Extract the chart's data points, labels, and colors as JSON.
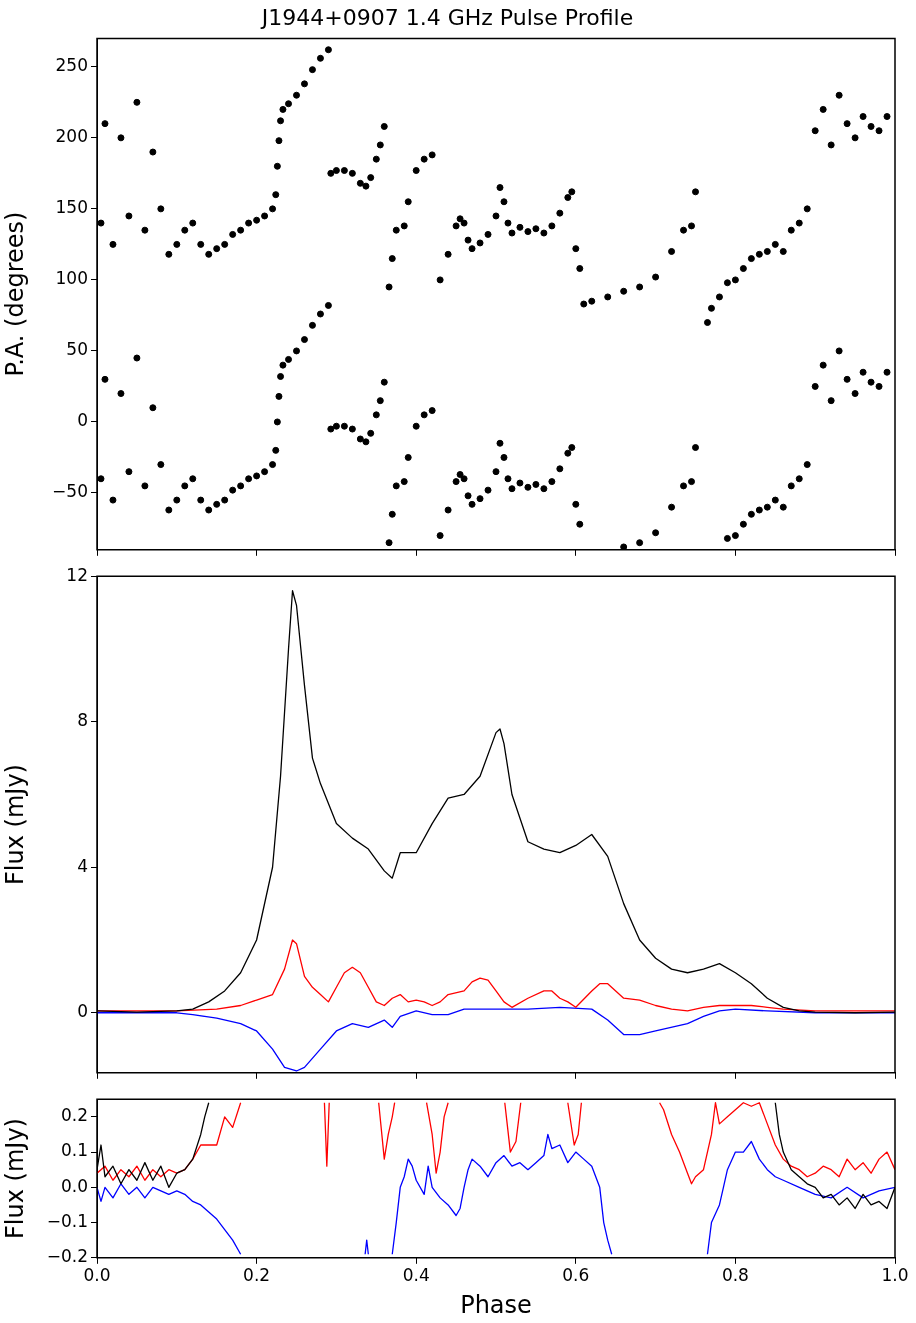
{
  "chart_data": [
    {
      "type": "scatter",
      "title": "J1944+0907 1.4 GHz Pulse Profile",
      "ylabel": "P.A. (degrees)",
      "xlim": [
        0,
        1
      ],
      "xticks": [
        0,
        0.2,
        0.4,
        0.6,
        0.8,
        1
      ],
      "ylim": [
        -90,
        270
      ],
      "yticks": [
        {
          "value": -50,
          "label": "−50"
        },
        0,
        50,
        100,
        150,
        200,
        250
      ],
      "tick_labels": "y",
      "marker": "circle",
      "grid": false,
      "series": [
        {
          "color": "#000000",
          "x": [
            0.005,
            0.01,
            0.02,
            0.03,
            0.04,
            0.05,
            0.06,
            0.07,
            0.08,
            0.09,
            0.1,
            0.11,
            0.12,
            0.13,
            0.14,
            0.15,
            0.16,
            0.17,
            0.18,
            0.19,
            0.2,
            0.21,
            0.22,
            0.224,
            0.226,
            0.228,
            0.23,
            0.233,
            0.24,
            0.25,
            0.26,
            0.27,
            0.28,
            0.29,
            0.293,
            0.3,
            0.31,
            0.32,
            0.33,
            0.337,
            0.343,
            0.35,
            0.355,
            0.36,
            0.366,
            0.37,
            0.375,
            0.385,
            0.39,
            0.4,
            0.41,
            0.42,
            0.43,
            0.44,
            0.45,
            0.455,
            0.46,
            0.465,
            0.47,
            0.48,
            0.49,
            0.5,
            0.505,
            0.51,
            0.515,
            0.52,
            0.53,
            0.54,
            0.55,
            0.56,
            0.57,
            0.58,
            0.59,
            0.595,
            0.6,
            0.605,
            0.66,
            0.68,
            0.7,
            0.72,
            0.735,
            0.745,
            0.75,
            0.79,
            0.8,
            0.81,
            0.82,
            0.83,
            0.84,
            0.85,
            0.86,
            0.87,
            0.88,
            0.89,
            0.9,
            0.91,
            0.92,
            0.93,
            0.94,
            0.95,
            0.96,
            0.97,
            0.98,
            0.99
          ],
          "values": [
            -40,
            30,
            -55,
            20,
            -35,
            45,
            -45,
            10,
            -30,
            -62,
            -55,
            -45,
            -40,
            -55,
            -62,
            -58,
            -55,
            -48,
            -45,
            -40,
            -38,
            -35,
            -30,
            -20,
            0,
            18,
            32,
            40,
            44,
            50,
            58,
            68,
            76,
            82,
            -5,
            -3,
            -3,
            -5,
            -12,
            -14,
            -8,
            5,
            15,
            28,
            -85,
            -65,
            -45,
            -42,
            -25,
            -3,
            5,
            8,
            -80,
            -62,
            -42,
            -37,
            -40,
            -52,
            -58,
            -54,
            -48,
            -35,
            -15,
            -25,
            -40,
            -47,
            -43,
            -46,
            -44,
            -47,
            -42,
            -33,
            -22,
            -18,
            -58,
            -72,
            -88,
            -85,
            -78,
            -60,
            -45,
            -42,
            -18,
            -82,
            -80,
            -72,
            -65,
            -62,
            -60,
            -55,
            -60,
            -45,
            -40,
            -30,
            25,
            40,
            15,
            50,
            30,
            20,
            35,
            28,
            25,
            35
          ]
        },
        {
          "color": "#000000",
          "x": [
            0.005,
            0.01,
            0.02,
            0.03,
            0.04,
            0.05,
            0.06,
            0.07,
            0.08,
            0.09,
            0.1,
            0.11,
            0.12,
            0.13,
            0.14,
            0.15,
            0.16,
            0.17,
            0.18,
            0.19,
            0.2,
            0.21,
            0.22,
            0.224,
            0.226,
            0.228,
            0.23,
            0.233,
            0.24,
            0.25,
            0.26,
            0.27,
            0.28,
            0.29,
            0.293,
            0.3,
            0.31,
            0.32,
            0.33,
            0.337,
            0.343,
            0.35,
            0.355,
            0.36,
            0.366,
            0.37,
            0.375,
            0.385,
            0.39,
            0.4,
            0.41,
            0.42,
            0.43,
            0.44,
            0.45,
            0.455,
            0.46,
            0.465,
            0.47,
            0.48,
            0.49,
            0.5,
            0.505,
            0.51,
            0.515,
            0.52,
            0.53,
            0.54,
            0.55,
            0.56,
            0.57,
            0.58,
            0.59,
            0.595,
            0.6,
            0.605,
            0.61,
            0.62,
            0.64,
            0.66,
            0.68,
            0.7,
            0.72,
            0.735,
            0.745,
            0.75,
            0.765,
            0.77,
            0.78,
            0.79,
            0.8,
            0.81,
            0.82,
            0.83,
            0.84,
            0.85,
            0.86,
            0.87,
            0.88,
            0.89,
            0.9,
            0.91,
            0.92,
            0.93,
            0.94,
            0.95,
            0.96,
            0.97,
            0.98,
            0.99
          ],
          "values": [
            140,
            210,
            125,
            200,
            145,
            225,
            135,
            190,
            150,
            118,
            125,
            135,
            140,
            125,
            118,
            122,
            125,
            132,
            135,
            140,
            142,
            145,
            150,
            160,
            180,
            198,
            212,
            220,
            224,
            230,
            238,
            248,
            256,
            262,
            175,
            177,
            177,
            175,
            168,
            166,
            172,
            185,
            195,
            208,
            95,
            115,
            135,
            138,
            155,
            177,
            185,
            188,
            100,
            118,
            138,
            143,
            140,
            128,
            122,
            126,
            132,
            145,
            165,
            155,
            140,
            133,
            137,
            134,
            136,
            133,
            138,
            147,
            158,
            162,
            122,
            108,
            83,
            85,
            88,
            92,
            95,
            102,
            120,
            135,
            138,
            162,
            70,
            80,
            88,
            98,
            100,
            108,
            115,
            118,
            120,
            125,
            120,
            135,
            140,
            150,
            205,
            220,
            195,
            230,
            210,
            200,
            215,
            208,
            205,
            215
          ]
        }
      ]
    },
    {
      "type": "line",
      "ylabel": "Flux (mJy)",
      "xlim": [
        0,
        1
      ],
      "xticks": [
        0,
        0.2,
        0.4,
        0.6,
        0.8,
        1
      ],
      "ylim": [
        -1.65,
        12
      ],
      "yticks": [
        0,
        4,
        8,
        12
      ],
      "tick_labels": "y",
      "marker": "none",
      "grid": false,
      "series": [
        {
          "color": "#000000",
          "x": [
            0,
            0.05,
            0.1,
            0.12,
            0.14,
            0.16,
            0.18,
            0.2,
            0.22,
            0.23,
            0.24,
            0.245,
            0.25,
            0.26,
            0.27,
            0.28,
            0.3,
            0.32,
            0.34,
            0.36,
            0.37,
            0.38,
            0.4,
            0.42,
            0.44,
            0.46,
            0.48,
            0.5,
            0.505,
            0.51,
            0.52,
            0.54,
            0.56,
            0.58,
            0.6,
            0.62,
            0.64,
            0.66,
            0.68,
            0.7,
            0.72,
            0.74,
            0.76,
            0.78,
            0.8,
            0.82,
            0.84,
            0.86,
            0.88,
            0.9,
            0.95,
            1
          ],
          "values": [
            0.05,
            0.02,
            0.05,
            0.1,
            0.3,
            0.6,
            1.1,
            2.0,
            4.0,
            6.5,
            10.0,
            11.6,
            11.2,
            9.0,
            7.0,
            6.3,
            5.2,
            4.8,
            4.5,
            3.9,
            3.7,
            4.4,
            4.4,
            5.2,
            5.9,
            6.0,
            6.5,
            7.7,
            7.8,
            7.4,
            6.0,
            4.7,
            4.5,
            4.4,
            4.6,
            4.9,
            4.3,
            3.0,
            2.0,
            1.5,
            1.2,
            1.1,
            1.2,
            1.35,
            1.1,
            0.8,
            0.4,
            0.15,
            0.05,
            0.02,
            0.0,
            0.02
          ]
        },
        {
          "color": "#ff0000",
          "x": [
            0,
            0.05,
            0.1,
            0.15,
            0.18,
            0.2,
            0.22,
            0.235,
            0.245,
            0.25,
            0.26,
            0.27,
            0.28,
            0.29,
            0.3,
            0.31,
            0.32,
            0.33,
            0.34,
            0.35,
            0.36,
            0.37,
            0.38,
            0.39,
            0.4,
            0.41,
            0.42,
            0.43,
            0.44,
            0.46,
            0.47,
            0.48,
            0.49,
            0.5,
            0.51,
            0.52,
            0.54,
            0.56,
            0.57,
            0.58,
            0.59,
            0.6,
            0.62,
            0.63,
            0.64,
            0.65,
            0.66,
            0.68,
            0.7,
            0.72,
            0.74,
            0.76,
            0.78,
            0.8,
            0.82,
            0.84,
            0.86,
            0.9,
            1
          ],
          "values": [
            0.05,
            0.05,
            0.05,
            0.1,
            0.2,
            0.35,
            0.5,
            1.2,
            2.0,
            1.9,
            1.0,
            0.7,
            0.5,
            0.3,
            0.7,
            1.1,
            1.25,
            1.1,
            0.7,
            0.3,
            0.2,
            0.4,
            0.5,
            0.3,
            0.35,
            0.3,
            0.2,
            0.3,
            0.5,
            0.6,
            0.85,
            0.95,
            0.9,
            0.6,
            0.3,
            0.15,
            0.4,
            0.6,
            0.6,
            0.4,
            0.3,
            0.15,
            0.6,
            0.8,
            0.8,
            0.6,
            0.4,
            0.35,
            0.2,
            0.1,
            0.05,
            0.15,
            0.2,
            0.2,
            0.2,
            0.15,
            0.1,
            0.05,
            0.05
          ]
        },
        {
          "color": "#0000ff",
          "x": [
            0,
            0.1,
            0.12,
            0.15,
            0.18,
            0.2,
            0.22,
            0.235,
            0.25,
            0.26,
            0.28,
            0.3,
            0.32,
            0.34,
            0.36,
            0.37,
            0.38,
            0.4,
            0.42,
            0.44,
            0.46,
            0.5,
            0.54,
            0.58,
            0.62,
            0.64,
            0.66,
            0.68,
            0.7,
            0.74,
            0.76,
            0.78,
            0.8,
            0.84,
            0.9,
            1
          ],
          "values": [
            0,
            0,
            -0.05,
            -0.15,
            -0.3,
            -0.5,
            -1.0,
            -1.5,
            -1.6,
            -1.5,
            -1.0,
            -0.5,
            -0.3,
            -0.4,
            -0.2,
            -0.4,
            -0.1,
            0.05,
            -0.05,
            -0.05,
            0.1,
            0.1,
            0.1,
            0.15,
            0.1,
            -0.2,
            -0.6,
            -0.6,
            -0.5,
            -0.3,
            -0.1,
            0.05,
            0.1,
            0.05,
            0,
            0
          ]
        }
      ]
    },
    {
      "type": "line",
      "xlabel": "Phase",
      "ylabel": "Flux (mJy)",
      "xlim": [
        0,
        1
      ],
      "xticks": [
        {
          "value": 0,
          "label": "0.0"
        },
        0.2,
        0.4,
        0.6,
        0.8,
        {
          "value": 1,
          "label": "1.0"
        }
      ],
      "ylim": [
        -0.2,
        0.25
      ],
      "yticks": [
        {
          "value": -0.2,
          "label": "−0.2"
        },
        {
          "value": -0.1,
          "label": "−0.1"
        },
        {
          "value": 0,
          "label": "0.0"
        },
        0.1,
        0.2
      ],
      "marker": "none",
      "grid": false,
      "series": [
        {
          "color": "#000000",
          "x": [
            0,
            0.005,
            0.01,
            0.02,
            0.03,
            0.04,
            0.05,
            0.06,
            0.07,
            0.08,
            0.09,
            0.1,
            0.11,
            0.12,
            0.13,
            0.135,
            0.14,
            0.5,
            0.85,
            0.855,
            0.86,
            0.87,
            0.88,
            0.89,
            0.9,
            0.91,
            0.92,
            0.93,
            0.94,
            0.95,
            0.96,
            0.97,
            0.98,
            0.99,
            1
          ],
          "values": [
            0.05,
            0.12,
            0.03,
            0.06,
            0.01,
            0.05,
            0.02,
            0.07,
            0.02,
            0.06,
            0.0,
            0.04,
            0.05,
            0.08,
            0.15,
            0.2,
            0.24,
            null,
            0.24,
            0.15,
            0.1,
            0.05,
            0.03,
            0.01,
            0.0,
            -0.03,
            -0.02,
            -0.05,
            -0.03,
            -0.06,
            -0.02,
            -0.05,
            -0.04,
            -0.06,
            0.0
          ]
        },
        {
          "color": "#ff0000",
          "x": [
            0,
            0.01,
            0.02,
            0.03,
            0.04,
            0.05,
            0.06,
            0.07,
            0.08,
            0.09,
            0.1,
            0.11,
            0.12,
            0.13,
            0.15,
            0.16,
            0.17,
            0.18,
            0.23,
            0.285,
            0.288,
            0.291,
            0.32,
            0.353,
            0.36,
            0.365,
            0.37,
            0.373,
            0.39,
            0.413,
            0.42,
            0.425,
            0.43,
            0.435,
            0.44,
            0.48,
            0.511,
            0.518,
            0.525,
            0.531,
            0.56,
            0.59,
            0.598,
            0.603,
            0.607,
            0.66,
            0.705,
            0.71,
            0.72,
            0.73,
            0.74,
            0.745,
            0.75,
            0.76,
            0.77,
            0.775,
            0.78,
            0.79,
            0.8,
            0.81,
            0.82,
            0.83,
            0.84,
            0.85,
            0.86,
            0.87,
            0.88,
            0.89,
            0.9,
            0.91,
            0.92,
            0.93,
            0.94,
            0.95,
            0.96,
            0.97,
            0.98,
            0.99,
            1
          ],
          "values": [
            0.04,
            0.06,
            0.02,
            0.05,
            0.03,
            0.06,
            0.02,
            0.05,
            0.03,
            0.05,
            0.04,
            0.05,
            0.08,
            0.12,
            0.12,
            0.2,
            0.17,
            0.24,
            null,
            0.24,
            0.06,
            0.24,
            null,
            0.24,
            0.08,
            0.15,
            0.2,
            0.24,
            null,
            0.24,
            0.15,
            0.04,
            0.1,
            0.2,
            0.24,
            null,
            0.24,
            0.1,
            0.13,
            0.24,
            null,
            0.24,
            0.12,
            0.15,
            0.24,
            null,
            0.24,
            0.22,
            0.15,
            0.1,
            0.04,
            0.01,
            0.03,
            0.05,
            0.15,
            0.24,
            0.18,
            0.2,
            0.22,
            0.24,
            0.23,
            0.24,
            0.18,
            0.12,
            0.08,
            0.06,
            0.05,
            0.03,
            0.04,
            0.06,
            0.05,
            0.03,
            0.08,
            0.05,
            0.07,
            0.04,
            0.08,
            0.1,
            0.05
          ]
        },
        {
          "color": "#0000ff",
          "x": [
            0,
            0.005,
            0.01,
            0.02,
            0.03,
            0.04,
            0.05,
            0.06,
            0.07,
            0.08,
            0.09,
            0.1,
            0.11,
            0.12,
            0.13,
            0.14,
            0.15,
            0.16,
            0.17,
            0.18,
            0.26,
            0.336,
            0.338,
            0.34,
            0.355,
            0.37,
            0.375,
            0.38,
            0.385,
            0.39,
            0.395,
            0.4,
            0.41,
            0.415,
            0.42,
            0.43,
            0.44,
            0.45,
            0.455,
            0.46,
            0.465,
            0.47,
            0.48,
            0.49,
            0.5,
            0.51,
            0.52,
            0.53,
            0.54,
            0.55,
            0.56,
            0.565,
            0.57,
            0.58,
            0.59,
            0.6,
            0.61,
            0.62,
            0.63,
            0.635,
            0.64,
            0.645,
            0.7,
            0.765,
            0.77,
            0.78,
            0.785,
            0.79,
            0.8,
            0.81,
            0.82,
            0.83,
            0.84,
            0.85,
            0.86,
            0.88,
            0.9,
            0.92,
            0.94,
            0.96,
            0.98,
            1
          ],
          "values": [
            0.0,
            -0.04,
            0.0,
            -0.03,
            0.01,
            -0.02,
            0.0,
            -0.03,
            0.0,
            -0.01,
            -0.02,
            -0.01,
            -0.02,
            -0.04,
            -0.05,
            -0.07,
            -0.09,
            -0.12,
            -0.15,
            -0.19,
            null,
            -0.19,
            -0.15,
            -0.19,
            null,
            -0.19,
            -0.1,
            0.0,
            0.03,
            0.08,
            0.06,
            0.02,
            -0.02,
            0.06,
            0.0,
            -0.03,
            -0.05,
            -0.08,
            -0.06,
            0.0,
            0.05,
            0.08,
            0.06,
            0.03,
            0.07,
            0.09,
            0.06,
            0.07,
            0.05,
            0.07,
            0.09,
            0.15,
            0.11,
            0.12,
            0.07,
            0.1,
            0.08,
            0.06,
            0.0,
            -0.1,
            -0.15,
            -0.19,
            null,
            -0.19,
            -0.1,
            -0.05,
            0.0,
            0.05,
            0.1,
            0.1,
            0.13,
            0.08,
            0.05,
            0.03,
            0.02,
            0.0,
            -0.02,
            -0.03,
            0.0,
            -0.03,
            -0.01,
            0.0
          ]
        }
      ]
    }
  ]
}
